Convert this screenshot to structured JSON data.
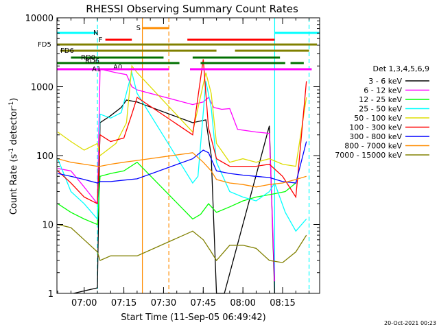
{
  "chart_data": {
    "type": "line",
    "title": "RHESSI Observing Summary Count Rates",
    "xlabel": "Start Time (11-Sep-05 06:49:42)",
    "ylabel_main": "Count Rate (s",
    "ylabel_sup1": "-1",
    "ylabel_mid": " detector",
    "ylabel_sup2": "-1",
    "ylabel_end": ")",
    "footer": "20-Oct-2021 00:23",
    "legend_title": "Det 1,3,4,5,6,9",
    "yscale": "log",
    "ylim": [
      1,
      10000
    ],
    "xlim_minutes": [
      6.8,
      35.6
    ],
    "x_unit": "minutes after 06:49:42 (converted from axis)",
    "y_ticks": [
      {
        "v": 1,
        "label": "1"
      },
      {
        "v": 10,
        "label": "10"
      },
      {
        "v": 100,
        "label": "100"
      },
      {
        "v": 1000,
        "label": "1000"
      },
      {
        "v": 10000,
        "label": "10000"
      }
    ],
    "x_ticks": [
      {
        "t": "07:00",
        "label": "07:00"
      },
      {
        "t": "07:15",
        "label": "07:15"
      },
      {
        "t": "07:30",
        "label": "07:30"
      },
      {
        "t": "07:45",
        "label": "07:45"
      },
      {
        "t": "08:00",
        "label": "08:00"
      },
      {
        "t": "08:15",
        "label": "08:15"
      }
    ],
    "x_range": [
      "06:49:42",
      "08:29:00"
    ],
    "series": [
      {
        "name": "3 - 6 keV",
        "color": "#000000",
        "points": [
          [
            "06:56",
            1
          ],
          [
            "07:05",
            1.2
          ],
          [
            "07:06",
            300
          ],
          [
            "07:10",
            380
          ],
          [
            "07:14",
            500
          ],
          [
            "07:16",
            640
          ],
          [
            "07:18",
            620
          ],
          [
            "07:20",
            600
          ],
          [
            "07:22",
            560
          ],
          [
            "07:41",
            300
          ],
          [
            "07:46",
            330
          ],
          [
            "07:48",
            100
          ],
          [
            "07:50",
            1
          ],
          [
            "07:53",
            1
          ],
          [
            "08:10",
            270
          ],
          [
            "08:12",
            1
          ]
        ]
      },
      {
        "name": "6 - 12 keV",
        "color": "#ff00ff",
        "points": [
          [
            "06:50",
            65
          ],
          [
            "06:55",
            60
          ],
          [
            "07:00",
            35
          ],
          [
            "07:05",
            20
          ],
          [
            "07:06",
            1800
          ],
          [
            "07:12",
            1600
          ],
          [
            "07:16",
            1500
          ],
          [
            "07:18",
            1000
          ],
          [
            "07:20",
            900
          ],
          [
            "07:41",
            550
          ],
          [
            "07:45",
            600
          ],
          [
            "07:47",
            700
          ],
          [
            "07:49",
            500
          ],
          [
            "07:52",
            470
          ],
          [
            "07:55",
            480
          ],
          [
            "07:58",
            240
          ],
          [
            "08:05",
            220
          ],
          [
            "08:10",
            210
          ],
          [
            "08:12",
            1.5
          ]
        ]
      },
      {
        "name": "12 - 25 keV",
        "color": "#00ff00",
        "points": [
          [
            "06:50",
            20
          ],
          [
            "06:55",
            15
          ],
          [
            "07:00",
            12
          ],
          [
            "07:05",
            10
          ],
          [
            "07:06",
            50
          ],
          [
            "07:10",
            55
          ],
          [
            "07:15",
            60
          ],
          [
            "07:20",
            80
          ],
          [
            "07:41",
            12
          ],
          [
            "07:44",
            14
          ],
          [
            "07:47",
            20
          ],
          [
            "07:50",
            15
          ],
          [
            "07:55",
            18
          ],
          [
            "08:00",
            22
          ],
          [
            "08:05",
            25
          ],
          [
            "08:12",
            28
          ],
          [
            "08:16",
            30
          ],
          [
            "08:20",
            40
          ]
        ]
      },
      {
        "name": "25 - 50 keV",
        "color": "#00ffff",
        "points": [
          [
            "06:50",
            90
          ],
          [
            "06:55",
            30
          ],
          [
            "07:00",
            20
          ],
          [
            "07:05",
            12
          ],
          [
            "07:06",
            400
          ],
          [
            "07:10",
            350
          ],
          [
            "07:14",
            420
          ],
          [
            "07:18",
            1600
          ],
          [
            "07:20",
            800
          ],
          [
            "07:41",
            40
          ],
          [
            "07:43",
            50
          ],
          [
            "07:46",
            1200
          ],
          [
            "07:48",
            500
          ],
          [
            "07:50",
            80
          ],
          [
            "07:55",
            30
          ],
          [
            "08:00",
            25
          ],
          [
            "08:05",
            22
          ],
          [
            "08:10",
            30
          ],
          [
            "08:12",
            40
          ],
          [
            "08:16",
            15
          ],
          [
            "08:20",
            8
          ],
          [
            "08:24",
            12
          ]
        ]
      },
      {
        "name": "50 - 100 keV",
        "color": "#dddd00",
        "points": [
          [
            "06:50",
            220
          ],
          [
            "06:55",
            160
          ],
          [
            "07:00",
            120
          ],
          [
            "07:05",
            150
          ],
          [
            "07:06",
            100
          ],
          [
            "07:12",
            150
          ],
          [
            "07:16",
            300
          ],
          [
            "07:18",
            2000
          ],
          [
            "07:20",
            1600
          ],
          [
            "07:41",
            220
          ],
          [
            "07:46",
            1600
          ],
          [
            "07:48",
            800
          ],
          [
            "07:50",
            150
          ],
          [
            "07:55",
            80
          ],
          [
            "08:00",
            90
          ],
          [
            "08:05",
            80
          ],
          [
            "08:10",
            90
          ],
          [
            "08:15",
            75
          ],
          [
            "08:20",
            70
          ],
          [
            "08:24",
            700
          ]
        ]
      },
      {
        "name": "100 - 300 keV",
        "color": "#ff0000",
        "points": [
          [
            "06:50",
            60
          ],
          [
            "06:55",
            40
          ],
          [
            "07:00",
            25
          ],
          [
            "07:05",
            20
          ],
          [
            "07:06",
            200
          ],
          [
            "07:10",
            160
          ],
          [
            "07:15",
            180
          ],
          [
            "07:18",
            400
          ],
          [
            "07:20",
            700
          ],
          [
            "07:41",
            200
          ],
          [
            "07:45",
            2500
          ],
          [
            "07:47",
            250
          ],
          [
            "07:50",
            90
          ],
          [
            "07:55",
            70
          ],
          [
            "08:00",
            70
          ],
          [
            "08:05",
            70
          ],
          [
            "08:10",
            75
          ],
          [
            "08:15",
            50
          ],
          [
            "08:20",
            25
          ],
          [
            "08:24",
            1200
          ]
        ]
      },
      {
        "name": "300 - 800 keV",
        "color": "#0000ff",
        "points": [
          [
            "06:50",
            55
          ],
          [
            "06:55",
            50
          ],
          [
            "07:00",
            45
          ],
          [
            "07:05",
            40
          ],
          [
            "07:06",
            42
          ],
          [
            "07:10",
            42
          ],
          [
            "07:15",
            44
          ],
          [
            "07:20",
            46
          ],
          [
            "07:41",
            90
          ],
          [
            "07:45",
            120
          ],
          [
            "07:47",
            110
          ],
          [
            "07:50",
            60
          ],
          [
            "07:55",
            55
          ],
          [
            "08:00",
            52
          ],
          [
            "08:05",
            50
          ],
          [
            "08:10",
            48
          ],
          [
            "08:15",
            42
          ],
          [
            "08:20",
            40
          ],
          [
            "08:24",
            160
          ]
        ]
      },
      {
        "name": "800 - 7000 keV",
        "color": "#ff8c00",
        "points": [
          [
            "06:50",
            90
          ],
          [
            "06:55",
            80
          ],
          [
            "07:00",
            75
          ],
          [
            "07:05",
            70
          ],
          [
            "07:06",
            70
          ],
          [
            "07:10",
            75
          ],
          [
            "07:15",
            80
          ],
          [
            "07:20",
            85
          ],
          [
            "07:41",
            110
          ],
          [
            "07:45",
            80
          ],
          [
            "07:48",
            60
          ],
          [
            "07:50",
            45
          ],
          [
            "07:55",
            40
          ],
          [
            "08:00",
            38
          ],
          [
            "08:05",
            35
          ],
          [
            "08:10",
            38
          ],
          [
            "08:15",
            40
          ],
          [
            "08:20",
            45
          ],
          [
            "08:24",
            50
          ]
        ]
      },
      {
        "name": "7000 - 15000 keV",
        "color": "#808000",
        "points": [
          [
            "06:50",
            10
          ],
          [
            "06:55",
            9
          ],
          [
            "07:00",
            6
          ],
          [
            "07:05",
            4
          ],
          [
            "07:06",
            3
          ],
          [
            "07:10",
            3.5
          ],
          [
            "07:15",
            3.5
          ],
          [
            "07:20",
            3.5
          ],
          [
            "07:41",
            8
          ],
          [
            "07:45",
            6
          ],
          [
            "07:48",
            4
          ],
          [
            "07:50",
            3
          ],
          [
            "07:55",
            5
          ],
          [
            "08:00",
            5
          ],
          [
            "08:05",
            4.5
          ],
          [
            "08:10",
            3
          ],
          [
            "08:15",
            2.8
          ],
          [
            "08:20",
            4
          ],
          [
            "08:24",
            7
          ]
        ]
      }
    ],
    "flags": [
      {
        "label": "N",
        "color": "#00ffff",
        "y": 48,
        "segments": [
          [
            "06:49:42",
            "07:05"
          ],
          [
            "08:12",
            "08:29"
          ]
        ]
      },
      {
        "label": "S",
        "color": "#ff8c00",
        "y": 41,
        "segments": [
          [
            "07:22",
            "07:32"
          ]
        ]
      },
      {
        "label": "F",
        "color": "#ff0000",
        "y": 58,
        "segments": [
          [
            "07:08",
            "07:18"
          ],
          [
            "07:39",
            "08:12"
          ]
        ]
      },
      {
        "label": "FD5",
        "color": "#808000",
        "y": 65,
        "segments": [
          [
            "06:49:42",
            "08:28"
          ]
        ]
      },
      {
        "label": "FD6",
        "color": "#808000",
        "y": 74,
        "segments": [
          [
            "06:51",
            "07:50"
          ],
          [
            "07:57",
            "08:25"
          ]
        ]
      },
      {
        "label": "RD0",
        "color": "#007000",
        "y": 84,
        "segments": [
          [
            "06:55",
            "07:30"
          ],
          [
            "07:41",
            "08:14"
          ]
        ]
      },
      {
        "label": "RD6",
        "color": "#007000",
        "y": 92,
        "segments": [
          [
            "06:49:42",
            "07:36"
          ],
          [
            "07:44",
            "08:16"
          ],
          [
            "08:18",
            "08:23"
          ]
        ]
      },
      {
        "label": "A0",
        "color": "#ff00ff",
        "y": 101,
        "segments": [
          [
            "07:12",
            "07:20"
          ]
        ]
      },
      {
        "label": "A1",
        "color": "#ff00ff",
        "y": 101,
        "segments": [
          [
            "06:49:42",
            "07:32"
          ],
          [
            "07:40",
            "08:26"
          ]
        ]
      }
    ],
    "vertical_lines": [
      {
        "t": "07:05",
        "color": "#00ffff",
        "style": "dashed"
      },
      {
        "t": "07:22",
        "color": "#ff8c00",
        "style": "solid"
      },
      {
        "t": "07:32",
        "color": "#ff8c00",
        "style": "dashed"
      },
      {
        "t": "08:12",
        "color": "#00ffff",
        "style": "solid"
      },
      {
        "t": "08:25",
        "color": "#00ffff",
        "style": "dashed"
      }
    ]
  }
}
